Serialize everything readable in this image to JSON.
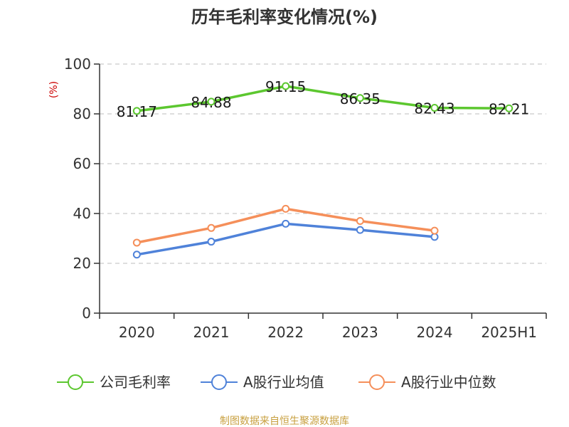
{
  "chart_data": {
    "type": "line",
    "title": "历年毛利率变化情况(%)",
    "ylabel": "(%)",
    "xlabel": "",
    "categories": [
      "2020",
      "2021",
      "2022",
      "2023",
      "2024",
      "2025H1"
    ],
    "ylim": [
      0,
      100
    ],
    "yticks": [
      0,
      20,
      40,
      60,
      80,
      100
    ],
    "grid": true,
    "legend_position": "bottom",
    "series": [
      {
        "name": "公司毛利率",
        "color": "#5cc72f",
        "values": [
          81.17,
          84.88,
          91.15,
          86.35,
          82.43,
          82.21
        ],
        "labels": [
          "81.17",
          "84.88",
          "91.15",
          "86.35",
          "82.43",
          "82.21"
        ]
      },
      {
        "name": "A股行业均值",
        "color": "#4f82d9",
        "values": [
          23.5,
          28.7,
          35.9,
          33.4,
          30.6,
          null
        ]
      },
      {
        "name": "A股行业中位数",
        "color": "#f58f5a",
        "values": [
          28.3,
          34.2,
          41.9,
          37.0,
          33.1,
          null
        ]
      }
    ]
  },
  "source_text": "制图数据来自恒生聚源数据库"
}
